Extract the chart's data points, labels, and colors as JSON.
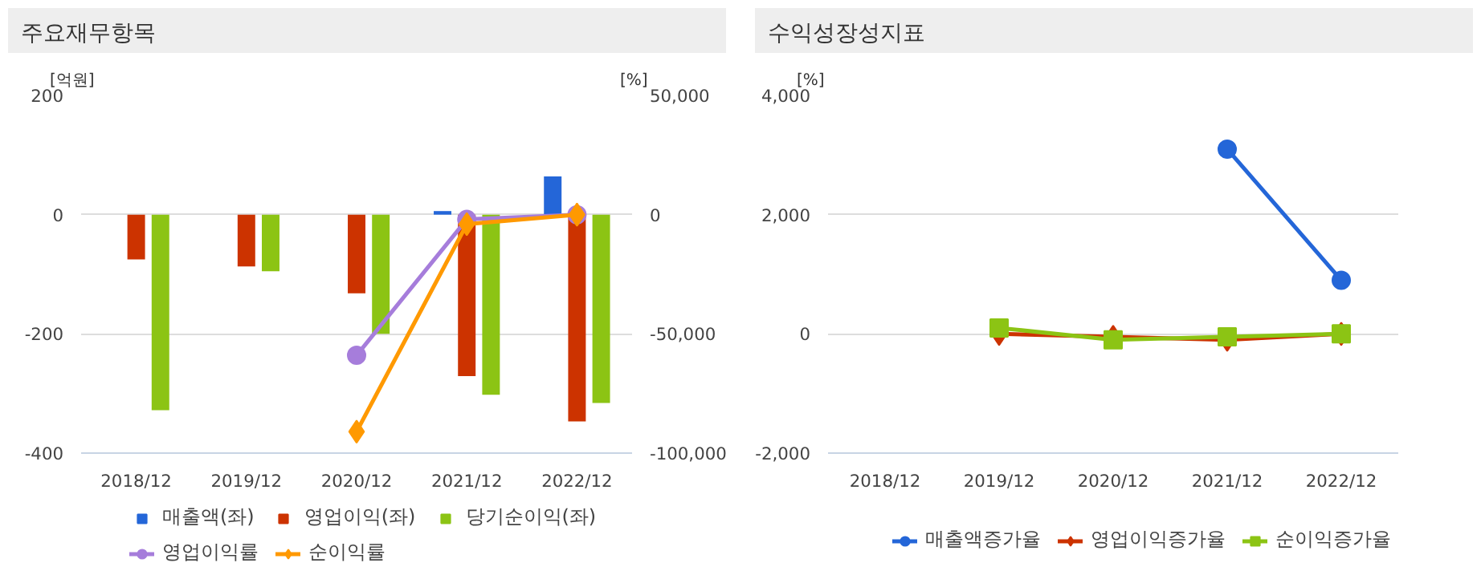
{
  "chart_data": [
    {
      "type": "bar",
      "title": "주요재무항목",
      "ylabel": "[억원]",
      "y2label": "[%]",
      "categories": [
        "2018/12",
        "2019/12",
        "2020/12",
        "2021/12",
        "2022/12"
      ],
      "series": [
        {
          "name": "매출액(좌)",
          "color": "#2466d8",
          "values": [
            null,
            null,
            null,
            6,
            64
          ]
        },
        {
          "name": "영업이익(좌)",
          "color": "#cc3300",
          "values": [
            -75,
            -87,
            -132,
            -271,
            -347
          ]
        },
        {
          "name": "당기순이익(좌)",
          "color": "#8cc414",
          "values": [
            -328,
            -95,
            -200,
            -302,
            -316
          ]
        },
        {
          "name": "영업이익률",
          "type": "line",
          "axis": "y2",
          "marker": "circle",
          "color": "#a67ddb",
          "values": [
            null,
            null,
            -59000,
            -2000,
            0
          ]
        },
        {
          "name": "순이익률",
          "type": "line",
          "axis": "y2",
          "marker": "diamond",
          "color": "#ff9900",
          "values": [
            null,
            null,
            -91000,
            -4000,
            0
          ]
        }
      ],
      "ylim": [
        -400,
        200
      ],
      "yticks": [
        -400,
        -200,
        0,
        200
      ],
      "y2lim": [
        -100000,
        50000
      ],
      "y2ticks": [
        {
          "value": -100000,
          "label": "-100,000"
        },
        {
          "value": -50000,
          "label": "-50,000"
        },
        0,
        {
          "value": 50000,
          "label": "50,000"
        }
      ],
      "grid": "y",
      "legend": "bottom"
    },
    {
      "type": "line",
      "title": "수익성장성지표",
      "ylabel": "[%]",
      "categories": [
        "2018/12",
        "2019/12",
        "2020/12",
        "2021/12",
        "2022/12"
      ],
      "series": [
        {
          "name": "매출액증가율",
          "marker": "circle",
          "color": "#2466d8",
          "values": [
            null,
            null,
            null,
            3100,
            900
          ]
        },
        {
          "name": "영업이익증가율",
          "marker": "diamond",
          "color": "#cc3300",
          "values": [
            null,
            0,
            -50,
            -100,
            0
          ]
        },
        {
          "name": "순이익증가율",
          "marker": "square",
          "color": "#8cc414",
          "values": [
            null,
            100,
            -100,
            -50,
            0
          ]
        }
      ],
      "ylim": [
        -2000,
        4000
      ],
      "yticks": [
        {
          "value": -2000,
          "label": "-2,000"
        },
        0,
        {
          "value": 2000,
          "label": "2,000"
        },
        {
          "value": 4000,
          "label": "4,000"
        }
      ],
      "grid": "y",
      "legend": "bottom"
    }
  ]
}
